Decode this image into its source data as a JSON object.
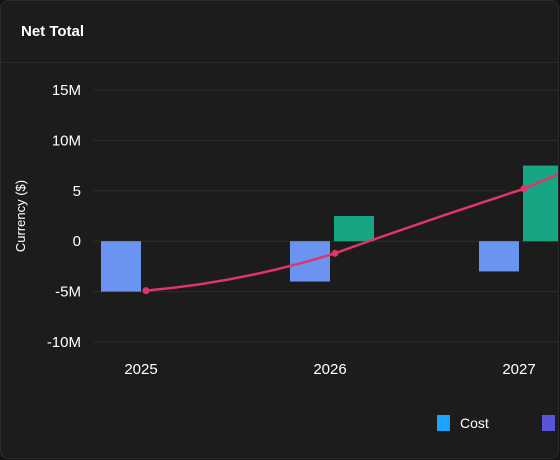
{
  "card": {
    "title": "Net Total"
  },
  "legend": [
    {
      "label": "Cost",
      "color": "#1aa3ff"
    },
    {
      "label": "",
      "color": "#5a55d6"
    }
  ],
  "chart_data": {
    "type": "bar",
    "title": "Net Total",
    "xlabel": "",
    "ylabel": "Currency ($)",
    "ylim": [
      -10,
      15
    ],
    "y_ticks": [
      {
        "value": 15,
        "label": "15M"
      },
      {
        "value": 10,
        "label": "10M"
      },
      {
        "value": 5,
        "label": "5"
      },
      {
        "value": 0,
        "label": "0"
      },
      {
        "value": -5,
        "label": "-5M"
      },
      {
        "value": -10,
        "label": "-10M"
      }
    ],
    "categories": [
      "2025",
      "2026",
      "2027"
    ],
    "series": [
      {
        "name": "Cost",
        "type": "bar",
        "color": "#6b93f0",
        "values": [
          -5,
          -4,
          -3
        ]
      },
      {
        "name": "",
        "type": "bar",
        "color": "#17a683",
        "values": [
          0,
          2.5,
          7.5
        ]
      },
      {
        "name": "",
        "type": "line",
        "color": "#e0356b",
        "values": [
          -4.9,
          -1.2,
          5.2
        ]
      }
    ],
    "grid": true
  }
}
